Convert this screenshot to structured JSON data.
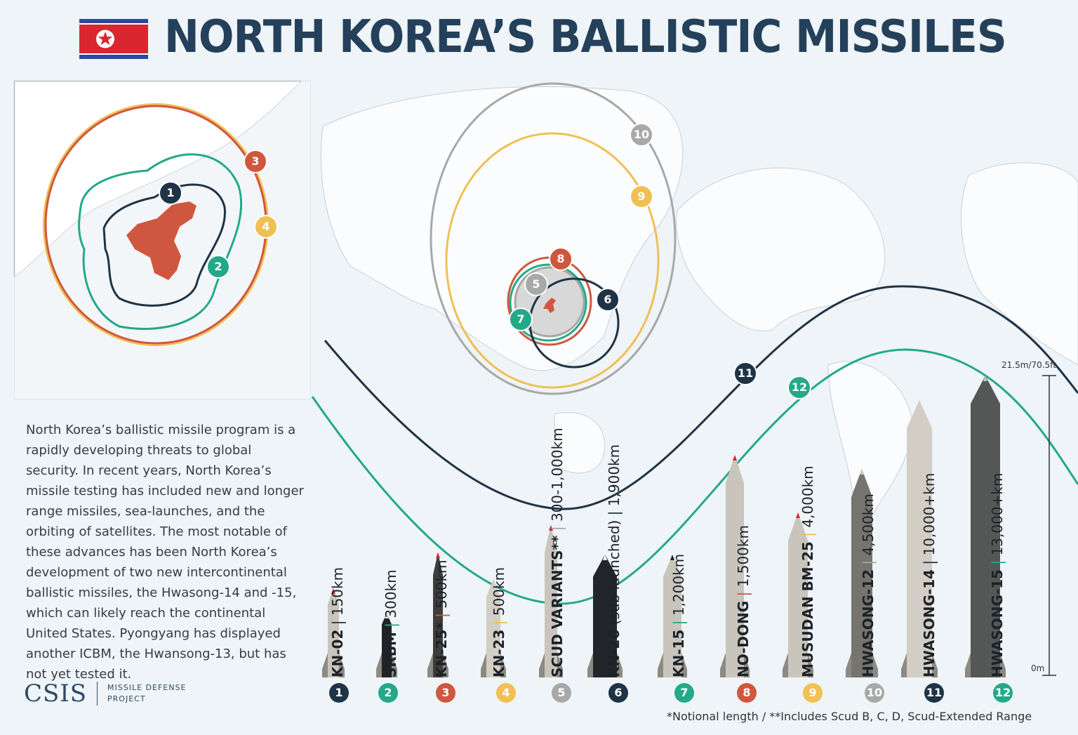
{
  "header": {
    "title": "NORTH KOREA’S BALLISTIC MISSILES",
    "flag": "north-korea-flag"
  },
  "colors": {
    "navy": "#1f3346",
    "teal": "#23a98a",
    "red": "#d0573f",
    "yellow": "#f0c055",
    "gray": "#a8a8a8",
    "title": "#24405a"
  },
  "description": "North Korea’s ballistic missile program is a rapidly developing threats to global security. In recent years, North Korea’s missile testing has included new and longer range missiles, sea-launches, and the orbiting of satellites. The most notable of these advances has been North Korea’s development of two new intercontinental ballistic missiles, the Hwasong-14 and -15, which can likely reach the continental United States. Pyongyang has displayed another ICBM, the Hwansong-13, but has not yet tested it.",
  "logo": {
    "name": "CSIS",
    "line1": "MISSILE DEFENSE",
    "line2": "PROJECT"
  },
  "inset_markers": [
    "1",
    "2",
    "3",
    "4"
  ],
  "missiles": [
    {
      "num": "1",
      "name": "KN-02",
      "range": "150km",
      "color": "#1f3346"
    },
    {
      "num": "2",
      "name": "SRBM",
      "range": "300km",
      "color": "#23a98a"
    },
    {
      "num": "3",
      "name": "KN-25*",
      "range": "500km",
      "color": "#d0573f"
    },
    {
      "num": "4",
      "name": "KN-23",
      "range": "500km",
      "color": "#f0c055"
    },
    {
      "num": "5",
      "name": "SCUD VARIANTS**",
      "range": "300-1,000km",
      "color": "#a8a8a8"
    },
    {
      "num": "6",
      "name": "KN-26",
      "name_note": "(sub launched)",
      "range": "1,900km",
      "color": "#1f3346"
    },
    {
      "num": "7",
      "name": "KN-15",
      "range": "1,200km",
      "color": "#23a98a"
    },
    {
      "num": "8",
      "name": "NO-DONG",
      "range": "1,500km",
      "color": "#d0573f"
    },
    {
      "num": "9",
      "name": "MUSUDAN BM-25",
      "range": "4,000km",
      "color": "#f0c055"
    },
    {
      "num": "10",
      "name": "HWASONG-12",
      "range": "4,500km",
      "color": "#a8a8a8"
    },
    {
      "num": "11",
      "name": "HWASONG-14",
      "range": "10,000+km",
      "color": "#1f3346"
    },
    {
      "num": "12",
      "name": "HWASONG-15",
      "range": "13,000+km",
      "color": "#23a98a"
    }
  ],
  "scale": {
    "top": "21.5m/70.5ft",
    "bottom": "0m"
  },
  "footnote": "*Notional length / **Includes Scud B, C, D, Scud-Extended Range"
}
